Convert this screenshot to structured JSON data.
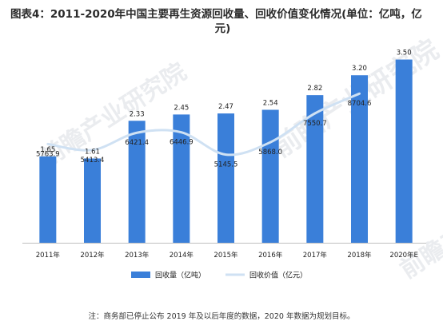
{
  "title_line1": "图表4：2011-2020年中国主要再生资源回收量、回收价值变化情况(单位：亿吨，亿",
  "title_line2": "元)",
  "note": "注：商务部已停止公布 2019 年及以后年度的数据，2020 年数据为规划目标。",
  "watermark_text": "前瞻产业研究院",
  "colors": {
    "bar": "#3a7fd9",
    "line": "#cfe1f3",
    "text": "#222222",
    "axis": "#bfbfbf"
  },
  "chart_data": {
    "type": "bar",
    "categories": [
      "2011年",
      "2012年",
      "2013年",
      "2014年",
      "2015年",
      "2016年",
      "2017年",
      "2018年",
      "2020年E"
    ],
    "ylim": [
      0,
      3.6
    ],
    "line_ylim": [
      0,
      11000
    ],
    "series": [
      {
        "name": "回收量（亿吨）",
        "type": "bar",
        "values": [
          1.65,
          1.61,
          2.33,
          2.45,
          2.47,
          2.54,
          2.82,
          3.2,
          3.5
        ],
        "labels": [
          "1.65",
          "1.61",
          "2.33",
          "2.45",
          "2.47",
          "2.54",
          "2.82",
          "3.20",
          "3.50"
        ]
      },
      {
        "name": "回收价值（亿元）",
        "type": "line",
        "values": [
          5763.9,
          5413.4,
          6421.4,
          6446.9,
          5145.5,
          5868.0,
          7550.7,
          8704.6,
          null
        ],
        "labels": [
          "5763.9",
          "5413.4",
          "6421.4",
          "6446.9",
          "5145.5",
          "5868.0",
          "7550.7",
          "8704.6",
          ""
        ]
      }
    ],
    "legend": [
      "回收量（亿吨）",
      "回收价值（亿元）"
    ],
    "legend_position": "bottom",
    "grid": false
  }
}
